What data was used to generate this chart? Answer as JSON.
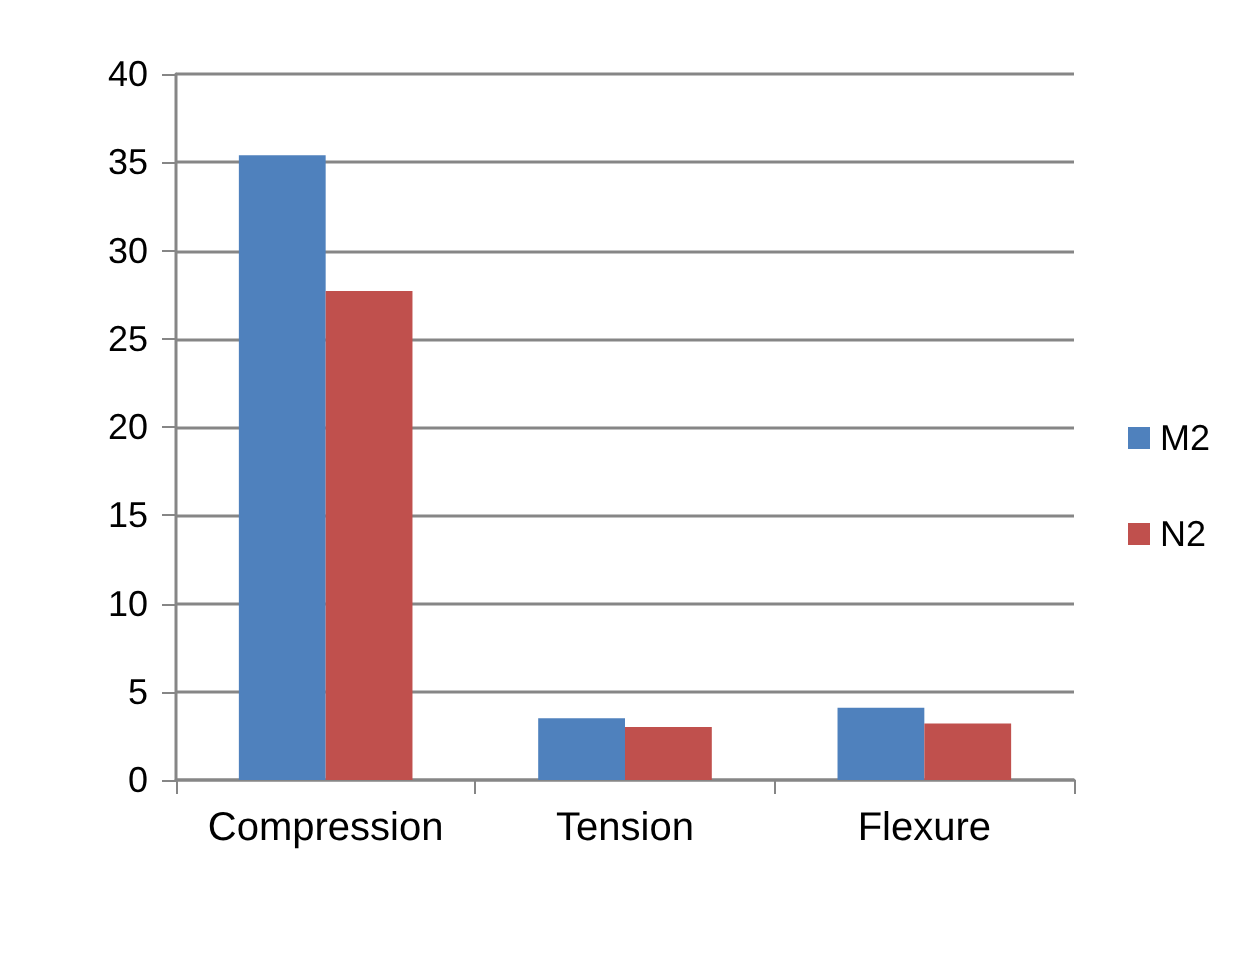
{
  "chart_data": {
    "type": "bar",
    "categories": [
      "Compression",
      "Tension",
      "Flexure"
    ],
    "series": [
      {
        "name": "M2",
        "color": "#4f81bd",
        "values": [
          35.4,
          3.5,
          4.1
        ]
      },
      {
        "name": "N2",
        "color": "#c0504d",
        "values": [
          27.7,
          3.0,
          3.2
        ]
      }
    ],
    "ylim": [
      0,
      40
    ],
    "yticks": [
      0,
      5,
      10,
      15,
      20,
      25,
      30,
      35,
      40
    ],
    "grid": "y",
    "legend": "right"
  }
}
